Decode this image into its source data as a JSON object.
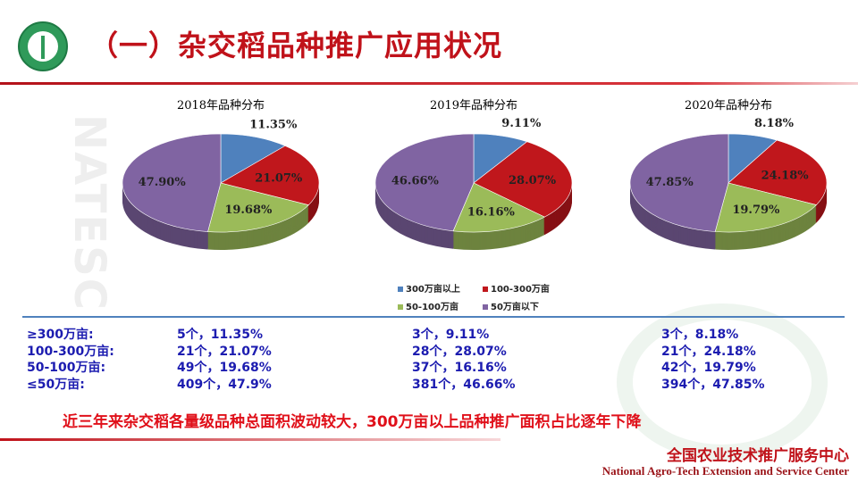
{
  "header": {
    "title": "（一）杂交稻品种推广应用状况"
  },
  "watermark": "NATESC",
  "chart_data": [
    {
      "type": "pie",
      "title": "2018年品种分布",
      "categories": [
        "300万亩以上",
        "100-300万亩",
        "50-100万亩",
        "50万亩以下"
      ],
      "values": [
        11.35,
        21.07,
        19.68,
        47.9
      ],
      "labels": [
        "11.35%",
        "21.07%",
        "19.68%",
        "47.90%"
      ]
    },
    {
      "type": "pie",
      "title": "2019年品种分布",
      "categories": [
        "300万亩以上",
        "100-300万亩",
        "50-100万亩",
        "50万亩以下"
      ],
      "values": [
        9.11,
        28.07,
        16.16,
        46.66
      ],
      "labels": [
        "9.11%",
        "28.07%",
        "16.16%",
        "46.66%"
      ]
    },
    {
      "type": "pie",
      "title": "2020年品种分布",
      "categories": [
        "300万亩以上",
        "100-300万亩",
        "50-100万亩",
        "50万亩以下"
      ],
      "values": [
        8.18,
        24.18,
        19.79,
        47.85
      ],
      "labels": [
        "8.18%",
        "24.18%",
        "19.79%",
        "47.85%"
      ]
    }
  ],
  "colors": [
    "#4f81bd",
    "#c0171c",
    "#9bbb59",
    "#8064a2"
  ],
  "legend": [
    "300万亩以上",
    "100-300万亩",
    "50-100万亩",
    "50万亩以下"
  ],
  "table": {
    "row_labels": [
      "≥300万亩:",
      "100-300万亩:",
      "50-100万亩:",
      "≤50万亩:"
    ],
    "columns": [
      [
        "5个，11.35%",
        "21个，21.07%",
        "49个，19.68%",
        "409个，47.9%"
      ],
      [
        "3个，9.11%",
        "28个，28.07%",
        "37个，16.16%",
        "381个，46.66%"
      ],
      [
        "3个，8.18%",
        "21个，24.18%",
        "42个，19.79%",
        "394个，47.85%"
      ]
    ]
  },
  "conclusion": "近三年来杂交稻各量级品种总面积波动较大，300万亩以上品种推广面积占比逐年下降",
  "footer": {
    "org_cn": "全国农业技术推广服务中心",
    "org_en": "National Agro-Tech Extension and Service Center"
  }
}
